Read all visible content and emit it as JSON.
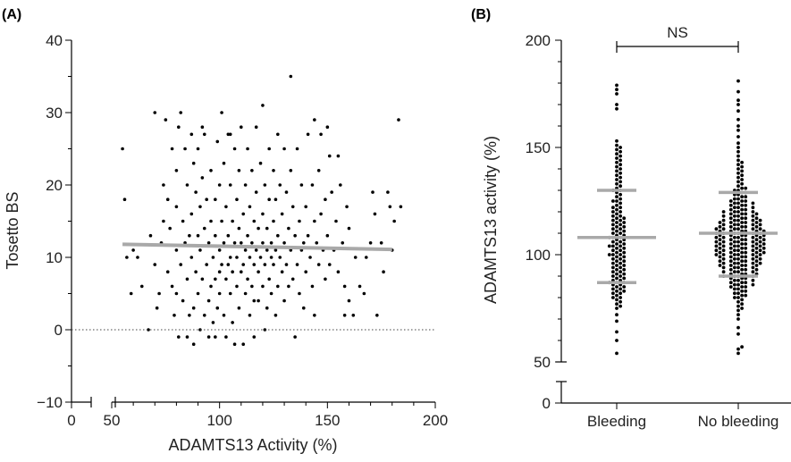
{
  "chart_data": [
    {
      "panel_label": "(A)",
      "type": "scatter",
      "xlabel": "ADAMTS13 Activity (%)",
      "ylabel": "Tosetto BS",
      "xlim": [
        0,
        200
      ],
      "ylim": [
        -10,
        40
      ],
      "x_axis_break": [
        35,
        50
      ],
      "xticks": [
        0,
        50,
        100,
        150,
        200
      ],
      "yticks": [
        -10,
        0,
        10,
        20,
        30,
        40
      ],
      "reference_line": {
        "y": 0,
        "style": "dotted"
      },
      "regression_line": {
        "x": [
          55,
          180
        ],
        "y": [
          11.8,
          11.1
        ],
        "color": "#a9a9a9"
      },
      "point_color": "#000000",
      "points": [
        [
          55,
          25
        ],
        [
          56,
          18
        ],
        [
          57,
          10
        ],
        [
          59,
          5
        ],
        [
          60,
          11
        ],
        [
          62,
          10
        ],
        [
          64,
          6
        ],
        [
          67,
          0
        ],
        [
          68,
          13
        ],
        [
          70,
          30
        ],
        [
          70,
          9
        ],
        [
          71,
          3
        ],
        [
          72,
          5
        ],
        [
          73,
          12
        ],
        [
          74,
          15
        ],
        [
          74,
          20
        ],
        [
          75,
          29
        ],
        [
          76,
          18
        ],
        [
          76,
          8
        ],
        [
          77,
          14
        ],
        [
          78,
          25
        ],
        [
          78,
          6
        ],
        [
          79,
          2
        ],
        [
          80,
          22
        ],
        [
          80,
          17
        ],
        [
          80,
          11
        ],
        [
          80,
          5
        ],
        [
          81,
          -1
        ],
        [
          81,
          28
        ],
        [
          82,
          30
        ],
        [
          82,
          9
        ],
        [
          83,
          15
        ],
        [
          83,
          4
        ],
        [
          84,
          25
        ],
        [
          84,
          12
        ],
        [
          85,
          20
        ],
        [
          85,
          -1
        ],
        [
          85,
          7
        ],
        [
          86,
          13
        ],
        [
          86,
          2
        ],
        [
          87,
          27
        ],
        [
          87,
          16
        ],
        [
          87,
          10
        ],
        [
          88,
          3
        ],
        [
          88,
          23
        ],
        [
          88,
          -2
        ],
        [
          89,
          19
        ],
        [
          89,
          8
        ],
        [
          90,
          25
        ],
        [
          90,
          13
        ],
        [
          90,
          5
        ],
        [
          91,
          0
        ],
        [
          91,
          17
        ],
        [
          91,
          11
        ],
        [
          92,
          21
        ],
        [
          92,
          7
        ],
        [
          93,
          27
        ],
        [
          93,
          14
        ],
        [
          93,
          2
        ],
        [
          94,
          9
        ],
        [
          94,
          18
        ],
        [
          95,
          12
        ],
        [
          95,
          4
        ],
        [
          95,
          -1
        ],
        [
          96,
          22
        ],
        [
          96,
          15
        ],
        [
          96,
          6
        ],
        [
          97,
          10
        ],
        [
          97,
          1
        ],
        [
          98,
          18
        ],
        [
          98,
          13
        ],
        [
          98,
          7
        ],
        [
          99,
          26
        ],
        [
          99,
          3
        ],
        [
          100,
          20
        ],
        [
          100,
          11
        ],
        [
          100,
          8
        ],
        [
          100,
          5
        ],
        [
          101,
          30
        ],
        [
          101,
          15
        ],
        [
          101,
          9
        ],
        [
          102,
          23
        ],
        [
          102,
          12
        ],
        [
          102,
          2
        ],
        [
          103,
          17
        ],
        [
          103,
          7
        ],
        [
          103,
          -1
        ],
        [
          104,
          27
        ],
        [
          104,
          13
        ],
        [
          104,
          9
        ],
        [
          105,
          20
        ],
        [
          105,
          10
        ],
        [
          105,
          5
        ],
        [
          106,
          15
        ],
        [
          106,
          8
        ],
        [
          106,
          1
        ],
        [
          107,
          25
        ],
        [
          107,
          12
        ],
        [
          107,
          -2
        ],
        [
          108,
          18
        ],
        [
          108,
          10
        ],
        [
          108,
          6
        ],
        [
          109,
          22
        ],
        [
          109,
          14
        ],
        [
          109,
          3
        ],
        [
          110,
          28
        ],
        [
          110,
          12
        ],
        [
          110,
          8
        ],
        [
          111,
          16
        ],
        [
          111,
          9
        ],
        [
          111,
          -2
        ],
        [
          112,
          20
        ],
        [
          112,
          11
        ],
        [
          112,
          5
        ],
        [
          113,
          25
        ],
        [
          113,
          13
        ],
        [
          113,
          7
        ],
        [
          114,
          17
        ],
        [
          114,
          10
        ],
        [
          114,
          2
        ],
        [
          115,
          22
        ],
        [
          115,
          12
        ],
        [
          115,
          6
        ],
        [
          116,
          15
        ],
        [
          116,
          9
        ],
        [
          116,
          -1
        ],
        [
          117,
          28
        ],
        [
          117,
          19
        ],
        [
          117,
          11
        ],
        [
          118,
          14
        ],
        [
          118,
          8
        ],
        [
          118,
          4
        ],
        [
          119,
          23
        ],
        [
          119,
          10
        ],
        [
          120,
          31
        ],
        [
          120,
          16
        ],
        [
          120,
          12
        ],
        [
          120,
          6
        ],
        [
          121,
          20
        ],
        [
          121,
          9
        ],
        [
          121,
          0
        ],
        [
          122,
          14
        ],
        [
          122,
          11
        ],
        [
          122,
          3
        ],
        [
          123,
          25
        ],
        [
          123,
          18
        ],
        [
          123,
          7
        ],
        [
          124,
          12
        ],
        [
          124,
          10
        ],
        [
          124,
          5
        ],
        [
          125,
          22
        ],
        [
          125,
          15
        ],
        [
          125,
          9
        ],
        [
          126,
          18
        ],
        [
          126,
          11
        ],
        [
          126,
          2
        ],
        [
          127,
          27
        ],
        [
          127,
          13
        ],
        [
          127,
          6
        ],
        [
          128,
          20
        ],
        [
          128,
          10
        ],
        [
          129,
          16
        ],
        [
          129,
          8
        ],
        [
          130,
          25
        ],
        [
          130,
          12
        ],
        [
          130,
          4
        ],
        [
          131,
          19
        ],
        [
          131,
          9
        ],
        [
          132,
          14
        ],
        [
          132,
          6
        ],
        [
          133,
          35
        ],
        [
          133,
          22
        ],
        [
          133,
          11
        ],
        [
          134,
          17
        ],
        [
          134,
          7
        ],
        [
          135,
          -1
        ],
        [
          135,
          13
        ],
        [
          136,
          25
        ],
        [
          136,
          9
        ],
        [
          137,
          15
        ],
        [
          137,
          5
        ],
        [
          138,
          20
        ],
        [
          138,
          11
        ],
        [
          139,
          12
        ],
        [
          139,
          3
        ],
        [
          140,
          17
        ],
        [
          140,
          8
        ],
        [
          141,
          27
        ],
        [
          141,
          13
        ],
        [
          142,
          10
        ],
        [
          143,
          20
        ],
        [
          143,
          6
        ],
        [
          144,
          15
        ],
        [
          144,
          2
        ],
        [
          145,
          12
        ],
        [
          146,
          22
        ],
        [
          146,
          9
        ],
        [
          147,
          27
        ],
        [
          147,
          16
        ],
        [
          148,
          11
        ],
        [
          149,
          18
        ],
        [
          149,
          7
        ],
        [
          150,
          28
        ],
        [
          150,
          13
        ],
        [
          151,
          24
        ],
        [
          151,
          9
        ],
        [
          152,
          19
        ],
        [
          153,
          11
        ],
        [
          154,
          15
        ],
        [
          155,
          24
        ],
        [
          155,
          8
        ],
        [
          156,
          20
        ],
        [
          157,
          12
        ],
        [
          158,
          6
        ],
        [
          158,
          2
        ],
        [
          159,
          17
        ],
        [
          160,
          14
        ],
        [
          160,
          4
        ],
        [
          162,
          2
        ],
        [
          163,
          10
        ],
        [
          165,
          6
        ],
        [
          167,
          5
        ],
        [
          168,
          10
        ],
        [
          170,
          12
        ],
        [
          171,
          19
        ],
        [
          172,
          16
        ],
        [
          173,
          2
        ],
        [
          175,
          12
        ],
        [
          176,
          8
        ],
        [
          178,
          19
        ],
        [
          179,
          17
        ],
        [
          180,
          11
        ],
        [
          181,
          15
        ],
        [
          183,
          29
        ],
        [
          184,
          17
        ],
        [
          144,
          29
        ],
        [
          116,
          4
        ],
        [
          98,
          -1
        ],
        [
          105,
          27
        ],
        [
          92,
          28
        ]
      ]
    },
    {
      "panel_label": "(B)",
      "type": "scatter",
      "subtype": "beeswarm",
      "ylabel": "ADAMTS13 activity (%)",
      "categories": [
        "Bleeding",
        "No bleeding"
      ],
      "ylim": [
        0,
        200
      ],
      "y_axis_break": [
        5,
        50
      ],
      "yticks": [
        0,
        50,
        100,
        150,
        200
      ],
      "significance": {
        "text": "NS",
        "between": [
          "Bleeding",
          "No bleeding"
        ]
      },
      "summary_color": "#a9a9a9",
      "summary": [
        {
          "category": "Bleeding",
          "median": 108,
          "q1": 87,
          "q3": 130
        },
        {
          "category": "No bleeding",
          "median": 110,
          "q1": 90,
          "q3": 129
        }
      ],
      "point_color": "#000000",
      "series": [
        {
          "category": "Bleeding",
          "values": [
            54,
            60,
            64,
            69,
            72,
            75,
            76,
            77,
            78,
            79,
            80,
            80,
            81,
            82,
            82,
            83,
            83,
            84,
            84,
            85,
            85,
            86,
            86,
            87,
            87,
            87,
            88,
            88,
            89,
            89,
            90,
            90,
            91,
            91,
            92,
            92,
            93,
            93,
            94,
            94,
            95,
            95,
            96,
            96,
            97,
            97,
            98,
            98,
            99,
            99,
            100,
            100,
            100,
            101,
            101,
            102,
            102,
            103,
            103,
            104,
            104,
            104,
            105,
            105,
            106,
            106,
            107,
            107,
            108,
            108,
            108,
            109,
            109,
            110,
            110,
            111,
            111,
            112,
            112,
            113,
            113,
            114,
            114,
            115,
            115,
            116,
            116,
            117,
            117,
            118,
            118,
            119,
            120,
            120,
            121,
            122,
            122,
            123,
            124,
            125,
            125,
            126,
            127,
            128,
            129,
            130,
            130,
            131,
            132,
            133,
            134,
            135,
            136,
            137,
            138,
            139,
            140,
            141,
            142,
            143,
            144,
            145,
            146,
            147,
            148,
            149,
            150,
            151,
            153,
            168,
            170,
            175,
            177,
            179
          ]
        },
        {
          "category": "No bleeding",
          "values": [
            54,
            56,
            57,
            63,
            66,
            70,
            72,
            74,
            75,
            76,
            77,
            78,
            79,
            80,
            80,
            81,
            81,
            82,
            82,
            83,
            83,
            84,
            84,
            85,
            85,
            85,
            86,
            86,
            86,
            87,
            87,
            87,
            88,
            88,
            88,
            89,
            89,
            89,
            90,
            90,
            90,
            90,
            91,
            91,
            91,
            91,
            92,
            92,
            92,
            92,
            93,
            93,
            93,
            93,
            94,
            94,
            94,
            94,
            95,
            95,
            95,
            95,
            95,
            96,
            96,
            96,
            96,
            96,
            97,
            97,
            97,
            97,
            97,
            98,
            98,
            98,
            98,
            98,
            99,
            99,
            99,
            99,
            99,
            100,
            100,
            100,
            100,
            100,
            100,
            101,
            101,
            101,
            101,
            101,
            101,
            102,
            102,
            102,
            102,
            102,
            102,
            103,
            103,
            103,
            103,
            103,
            103,
            104,
            104,
            104,
            104,
            104,
            104,
            105,
            105,
            105,
            105,
            105,
            105,
            106,
            106,
            106,
            106,
            106,
            106,
            107,
            107,
            107,
            107,
            107,
            107,
            108,
            108,
            108,
            108,
            108,
            108,
            109,
            109,
            109,
            109,
            109,
            109,
            110,
            110,
            110,
            110,
            110,
            110,
            111,
            111,
            111,
            111,
            111,
            111,
            112,
            112,
            112,
            112,
            112,
            112,
            113,
            113,
            113,
            113,
            113,
            114,
            114,
            114,
            114,
            114,
            115,
            115,
            115,
            115,
            115,
            116,
            116,
            116,
            116,
            116,
            117,
            117,
            117,
            117,
            118,
            118,
            118,
            118,
            119,
            119,
            119,
            119,
            120,
            120,
            120,
            120,
            121,
            121,
            121,
            122,
            122,
            122,
            123,
            123,
            123,
            124,
            124,
            124,
            125,
            125,
            125,
            126,
            126,
            127,
            127,
            128,
            128,
            129,
            129,
            130,
            130,
            131,
            131,
            132,
            133,
            134,
            135,
            136,
            137,
            138,
            139,
            140,
            141,
            142,
            143,
            144,
            146,
            148,
            150,
            152,
            155,
            158,
            160,
            163,
            167,
            170,
            172,
            176,
            181
          ]
        }
      ]
    }
  ]
}
